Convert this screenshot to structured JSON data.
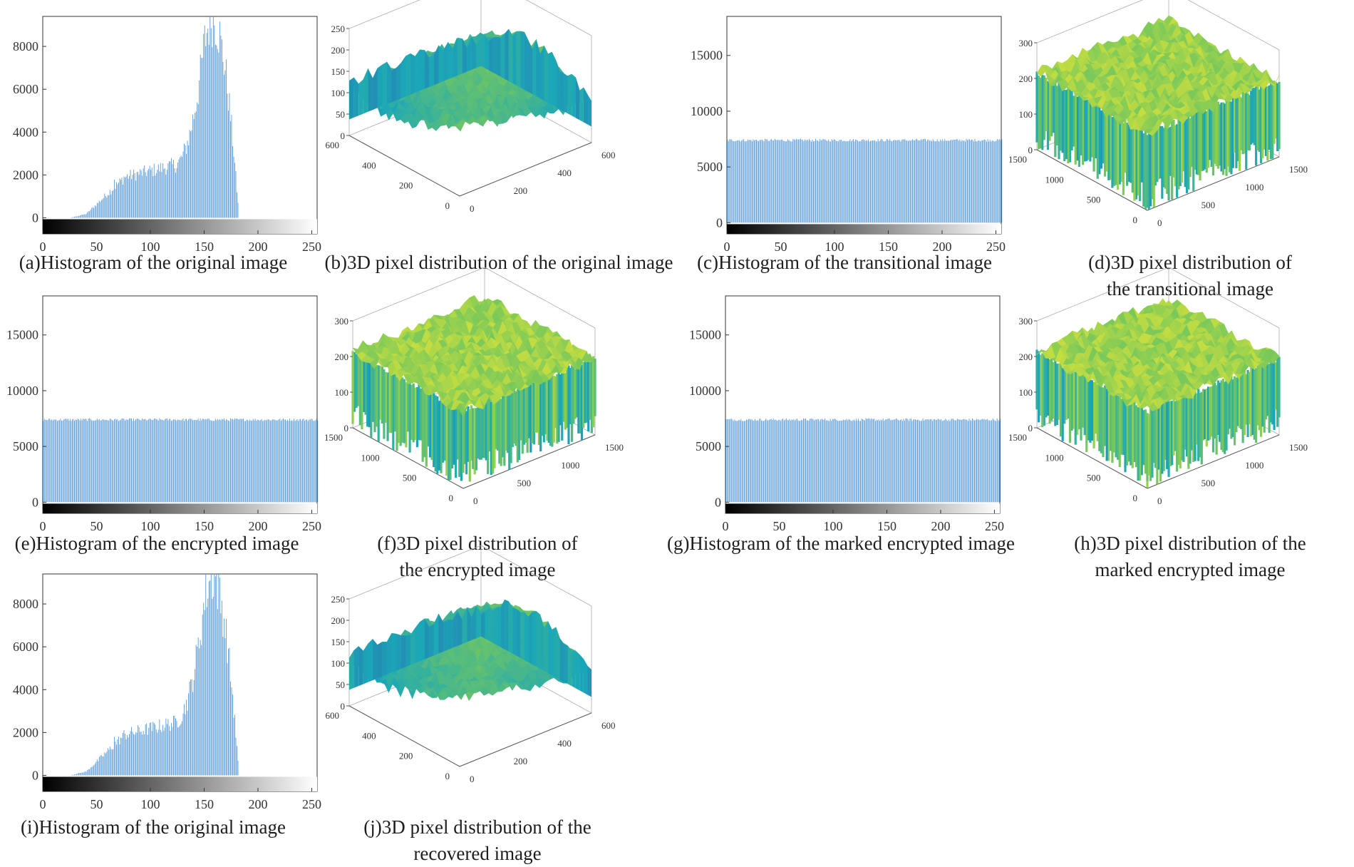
{
  "histograms": [
    {
      "id": "a",
      "caption": "(a)Histogram of the original image",
      "chart_data": {
        "type": "bar",
        "title": "",
        "xlabel": "",
        "ylabel": "",
        "xlim": [
          0,
          255
        ],
        "ylim": [
          -750,
          9400
        ],
        "xticks": [
          "0",
          "50",
          "100",
          "150",
          "200",
          "250"
        ],
        "yticks": [
          "0",
          "2000",
          "4000",
          "6000",
          "8000"
        ],
        "profile": "original",
        "colorbar": "grayscale 0-255"
      }
    },
    {
      "id": "c",
      "caption": "(c)Histogram of the transitional image",
      "chart_data": {
        "type": "bar",
        "title": "",
        "xlabel": "",
        "ylabel": "",
        "xlim": [
          0,
          255
        ],
        "ylim": [
          -1000,
          18500
        ],
        "xticks": [
          "0",
          "50",
          "100",
          "150",
          "200",
          "250"
        ],
        "yticks": [
          "0",
          "5000",
          "10000",
          "15000"
        ],
        "profile": "uniform",
        "level": 7400,
        "colorbar": "grayscale 0-255"
      }
    },
    {
      "id": "e",
      "caption": "(e)Histogram of the encrypted image",
      "chart_data": {
        "type": "bar",
        "title": "",
        "xlabel": "",
        "ylabel": "",
        "xlim": [
          0,
          255
        ],
        "ylim": [
          -1000,
          18500
        ],
        "xticks": [
          "0",
          "50",
          "100",
          "150",
          "200",
          "250"
        ],
        "yticks": [
          "0",
          "5000",
          "10000",
          "15000"
        ],
        "profile": "uniform",
        "level": 7400,
        "colorbar": "grayscale 0-255"
      }
    },
    {
      "id": "g",
      "caption": "(g)Histogram of the marked encrypted image",
      "chart_data": {
        "type": "bar",
        "title": "",
        "xlabel": "",
        "ylabel": "",
        "xlim": [
          0,
          255
        ],
        "ylim": [
          -1000,
          18500
        ],
        "xticks": [
          "0",
          "50",
          "100",
          "150",
          "200",
          "250"
        ],
        "yticks": [
          "0",
          "5000",
          "10000",
          "15000"
        ],
        "profile": "uniform",
        "level": 7400,
        "colorbar": "grayscale 0-255"
      }
    },
    {
      "id": "i",
      "caption": "(i)Histogram of the original image",
      "chart_data": {
        "type": "bar",
        "title": "",
        "xlabel": "",
        "ylabel": "",
        "xlim": [
          0,
          255
        ],
        "ylim": [
          -750,
          9400
        ],
        "xticks": [
          "0",
          "50",
          "100",
          "150",
          "200",
          "250"
        ],
        "yticks": [
          "0",
          "2000",
          "4000",
          "6000",
          "8000"
        ],
        "profile": "original",
        "colorbar": "grayscale 0-255"
      }
    }
  ],
  "surfaces": [
    {
      "id": "b",
      "caption_lines": [
        "(b)3D pixel distribution of the original image"
      ],
      "chart_data": {
        "type": "surface",
        "zticks": [
          "250",
          "200",
          "150",
          "100",
          "50",
          "0"
        ],
        "left_ticks": [
          "600",
          "400",
          "200",
          "0"
        ],
        "right_ticks": [
          "0",
          "200",
          "400",
          "600"
        ],
        "zlim": [
          0,
          250
        ],
        "surface": "natural image"
      }
    },
    {
      "id": "d",
      "caption_lines": [
        "(d)3D pixel distribution of",
        "the transitional image"
      ],
      "chart_data": {
        "type": "surface",
        "zticks": [
          "300",
          "200",
          "100",
          "0"
        ],
        "left_ticks": [
          "1500",
          "1000",
          "500",
          "0"
        ],
        "right_ticks": [
          "0",
          "500",
          "1000",
          "1500"
        ],
        "zlim": [
          0,
          300
        ],
        "surface": "uniform noise"
      }
    },
    {
      "id": "f",
      "caption_lines": [
        "(f)3D pixel distribution of",
        "the encrypted image"
      ],
      "chart_data": {
        "type": "surface",
        "zticks": [
          "300",
          "200",
          "100",
          "0"
        ],
        "left_ticks": [
          "1500",
          "1000",
          "500",
          "0"
        ],
        "right_ticks": [
          "0",
          "500",
          "1000",
          "1500"
        ],
        "zlim": [
          0,
          300
        ],
        "surface": "uniform noise"
      }
    },
    {
      "id": "h",
      "caption_lines": [
        "(h)3D pixel distribution of the",
        "marked encrypted image"
      ],
      "chart_data": {
        "type": "surface",
        "zticks": [
          "300",
          "200",
          "100",
          "0"
        ],
        "left_ticks": [
          "1500",
          "1000",
          "500",
          "0"
        ],
        "right_ticks": [
          "0",
          "500",
          "1000",
          "1500"
        ],
        "zlim": [
          0,
          300
        ],
        "surface": "uniform noise"
      }
    },
    {
      "id": "j",
      "caption_lines": [
        "(j)3D pixel distribution of the",
        "recovered image"
      ],
      "chart_data": {
        "type": "surface",
        "zticks": [
          "250",
          "200",
          "150",
          "100",
          "50",
          "0"
        ],
        "left_ticks": [
          "600",
          "400",
          "200",
          "0"
        ],
        "right_ticks": [
          "0",
          "200",
          "400",
          "600"
        ],
        "zlim": [
          0,
          250
        ],
        "surface": "natural image"
      }
    }
  ],
  "colors": {
    "bar": "#5b9bd5",
    "surface_low": "#3b3fa5",
    "surface_mid": "#1aa7b8",
    "surface_high": "#d8e23a"
  }
}
